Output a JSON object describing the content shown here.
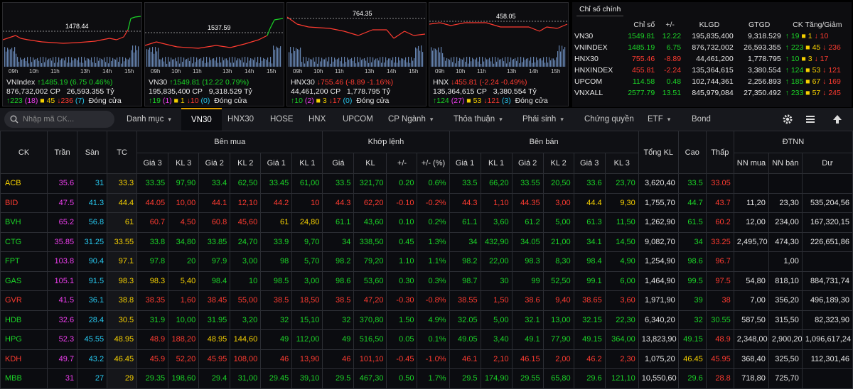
{
  "colors": {
    "up": "#1bd427",
    "down": "#ff3b30",
    "ref": "#f5d000",
    "floor": "#27c9f0",
    "ceil": "#f03ef0"
  },
  "mini_charts": [
    {
      "name": "VNIndex",
      "ref_value": "1478.44",
      "arrow": "↑",
      "change": "1485.19 (6.75 0.46%)",
      "dir": "g",
      "vol": "876,732,002",
      "vol_unit": "CP",
      "val": "26,593.355",
      "val_unit": "Tỷ",
      "up": "223",
      "ceil": "(18)",
      "ref": "45",
      "down": "236",
      "floor": "(7)",
      "status": "Đóng cửa"
    },
    {
      "name": "VN30",
      "ref_value": "1537.59",
      "arrow": "↑",
      "change": "1549.81 (12.22 0.79%)",
      "dir": "g",
      "vol": "195,835,400",
      "vol_unit": "CP",
      "val": "9,318.529",
      "val_unit": "Tỷ",
      "up": "19",
      "ceil": "(1)",
      "ref": "1",
      "down": "10",
      "floor": "(0)",
      "status": "Đóng cửa"
    },
    {
      "name": "HNX30",
      "ref_value": "764.35",
      "arrow": "↓",
      "change": "755.46 (-8.89 -1.16%)",
      "dir": "r",
      "vol": "44,461,200",
      "vol_unit": "CP",
      "val": "1,778.795",
      "val_unit": "Tỷ",
      "up": "10",
      "ceil": "(2)",
      "ref": "3",
      "down": "17",
      "floor": "(0)",
      "status": "Đóng cửa"
    },
    {
      "name": "HNX",
      "ref_value": "458.05",
      "arrow": "↓",
      "change": "455.81 (-2.24 -0.49%)",
      "dir": "r",
      "vol": "135,364,615",
      "vol_unit": "CP",
      "val": "3,380.554",
      "val_unit": "Tỷ",
      "up": "124",
      "ceil": "(27)",
      "ref": "53",
      "down": "121",
      "floor": "(3)",
      "status": "Đóng cửa"
    }
  ],
  "time_ticks": [
    "09h",
    "10h",
    "11h",
    "13h",
    "14h",
    "15h"
  ],
  "index_table": {
    "title": "Chỉ số chính",
    "headers": [
      "Chỉ số",
      "+/-",
      "KLGD",
      "GTGD",
      "CK Tăng/Giảm"
    ],
    "rows": [
      {
        "name": "VN30",
        "value": "1549.81",
        "change": "12.22",
        "klgd": "195,835,400",
        "gtgd": "9,318.529",
        "up": "19",
        "ref": "1",
        "down": "10",
        "dir": "g"
      },
      {
        "name": "VNINDEX",
        "value": "1485.19",
        "change": "6.75",
        "klgd": "876,732,002",
        "gtgd": "26,593.355",
        "up": "223",
        "ref": "45",
        "down": "236",
        "dir": "g"
      },
      {
        "name": "HNX30",
        "value": "755.46",
        "change": "-8.89",
        "klgd": "44,461,200",
        "gtgd": "1,778.795",
        "up": "10",
        "ref": "3",
        "down": "17",
        "dir": "r"
      },
      {
        "name": "HNXINDEX",
        "value": "455.81",
        "change": "-2.24",
        "klgd": "135,364,615",
        "gtgd": "3,380.554",
        "up": "124",
        "ref": "53",
        "down": "121",
        "dir": "r"
      },
      {
        "name": "UPCOM",
        "value": "114.58",
        "change": "0.48",
        "klgd": "102,744,361",
        "gtgd": "2,256.893",
        "up": "185",
        "ref": "67",
        "down": "169",
        "dir": "g"
      },
      {
        "name": "VNXALL",
        "value": "2577.79",
        "change": "13.51",
        "klgd": "845,979,084",
        "gtgd": "27,350.492",
        "up": "233",
        "ref": "57",
        "down": "245",
        "dir": "g"
      }
    ]
  },
  "search": {
    "placeholder": "Nhập mã CK..."
  },
  "tabs": [
    {
      "label": "Danh mục",
      "chev": true
    },
    {
      "label": "VN30",
      "chev": false
    },
    {
      "label": "HNX30",
      "chev": false
    },
    {
      "label": "HOSE",
      "chev": false
    },
    {
      "label": "HNX",
      "chev": false
    },
    {
      "label": "UPCOM",
      "chev": false
    },
    {
      "label": "CP Ngành",
      "chev": true
    },
    {
      "label": "Thỏa thuận",
      "chev": true
    },
    {
      "label": "Phái sinh",
      "chev": true
    },
    {
      "label": "Chứng quyền",
      "chev": false
    },
    {
      "label": "ETF",
      "chev": true
    },
    {
      "label": "Bond",
      "chev": false
    }
  ],
  "board": {
    "groups": {
      "ck": "CK",
      "tran": "Trần",
      "san": "Sàn",
      "tc": "TC",
      "buy": "Bên mua",
      "match": "Khớp lệnh",
      "sell": "Bên bán",
      "tong": "Tổng KL",
      "cao": "Cao",
      "thap": "Thấp",
      "dtnn": "ĐTNN"
    },
    "sub": [
      "Giá 3",
      "KL 3",
      "Giá 2",
      "KL 2",
      "Giá 1",
      "KL 1",
      "Giá",
      "KL",
      "+/-",
      "+/- (%)",
      "Giá 1",
      "KL 1",
      "Giá 2",
      "KL 2",
      "Giá 3",
      "KL 3",
      "NN mua",
      "NN bán",
      "Dư"
    ],
    "rows": [
      {
        "ck": "ACB",
        "d": "y",
        "tran": "35.6",
        "san": "31",
        "tc": "33.3",
        "b3": [
          "33.35",
          "97,90",
          "g"
        ],
        "b2": [
          "33.4",
          "62,50",
          "g"
        ],
        "b1": [
          "33.45",
          "61,00",
          "g"
        ],
        "m": [
          "33.5",
          "321,70",
          "0.20",
          "0.6%",
          "g"
        ],
        "s1": [
          "33.5",
          "66,20",
          "g"
        ],
        "s2": [
          "33.55",
          "20,50",
          "g"
        ],
        "s3": [
          "33.6",
          "23,70",
          "g"
        ],
        "tong": "3,620,40",
        "cao": [
          "33.5",
          "g"
        ],
        "thap": [
          "33.05",
          "r"
        ],
        "nnm": "",
        "nnb": "",
        "du": ""
      },
      {
        "ck": "BID",
        "d": "r",
        "tran": "47.5",
        "san": "41.3",
        "tc": "44.4",
        "b3": [
          "44.05",
          "10,00",
          "r"
        ],
        "b2": [
          "44.1",
          "12,10",
          "r"
        ],
        "b1": [
          "44.2",
          "10",
          "r"
        ],
        "m": [
          "44.3",
          "62,20",
          "-0.10",
          "-0.2%",
          "r"
        ],
        "s1": [
          "44.3",
          "1,10",
          "r"
        ],
        "s2": [
          "44.35",
          "3,00",
          "r"
        ],
        "s3": [
          "44.4",
          "9,30",
          "y"
        ],
        "tong": "1,755,70",
        "cao": [
          "44.7",
          "g"
        ],
        "thap": [
          "43.7",
          "r"
        ],
        "nnm": "11,20",
        "nnb": "23,30",
        "du": "535,204,56"
      },
      {
        "ck": "BVH",
        "d": "g",
        "tran": "65.2",
        "san": "56.8",
        "tc": "61",
        "b3": [
          "60.7",
          "4,50",
          "r"
        ],
        "b2": [
          "60.8",
          "45,60",
          "r"
        ],
        "b1": [
          "61",
          "24,80",
          "y"
        ],
        "m": [
          "61.1",
          "43,60",
          "0.10",
          "0.2%",
          "g"
        ],
        "s1": [
          "61.1",
          "3,60",
          "g"
        ],
        "s2": [
          "61.2",
          "5,00",
          "g"
        ],
        "s3": [
          "61.3",
          "11,50",
          "g"
        ],
        "tong": "1,262,90",
        "cao": [
          "61.5",
          "g"
        ],
        "thap": [
          "60.2",
          "r"
        ],
        "nnm": "12,00",
        "nnb": "234,00",
        "du": "167,320,15"
      },
      {
        "ck": "CTG",
        "d": "g",
        "tran": "35.85",
        "san": "31.25",
        "tc": "33.55",
        "b3": [
          "33.8",
          "34,80",
          "g"
        ],
        "b2": [
          "33.85",
          "24,70",
          "g"
        ],
        "b1": [
          "33.9",
          "9,70",
          "g"
        ],
        "m": [
          "34",
          "338,50",
          "0.45",
          "1.3%",
          "g"
        ],
        "s1": [
          "34",
          "432,90",
          "g"
        ],
        "s2": [
          "34.05",
          "21,00",
          "g"
        ],
        "s3": [
          "34.1",
          "14,50",
          "g"
        ],
        "tong": "9,082,70",
        "cao": [
          "34",
          "g"
        ],
        "thap": [
          "33.25",
          "r"
        ],
        "nnm": "2,495,70",
        "nnb": "474,30",
        "du": "226,651,86"
      },
      {
        "ck": "FPT",
        "d": "g",
        "tran": "103.8",
        "san": "90.4",
        "tc": "97.1",
        "b3": [
          "97.8",
          "20",
          "g"
        ],
        "b2": [
          "97.9",
          "3,00",
          "g"
        ],
        "b1": [
          "98",
          "5,70",
          "g"
        ],
        "m": [
          "98.2",
          "79,20",
          "1.10",
          "1.1%",
          "g"
        ],
        "s1": [
          "98.2",
          "22,00",
          "g"
        ],
        "s2": [
          "98.3",
          "8,30",
          "g"
        ],
        "s3": [
          "98.4",
          "4,90",
          "g"
        ],
        "tong": "1,254,90",
        "cao": [
          "98.6",
          "g"
        ],
        "thap": [
          "96.7",
          "r"
        ],
        "nnm": "",
        "nnb": "1,00",
        "du": ""
      },
      {
        "ck": "GAS",
        "d": "g",
        "tran": "105.1",
        "san": "91.5",
        "tc": "98.3",
        "b3": [
          "98.3",
          "5,40",
          "y"
        ],
        "b2": [
          "98.4",
          "10",
          "g"
        ],
        "b1": [
          "98.5",
          "3,00",
          "g"
        ],
        "m": [
          "98.6",
          "53,60",
          "0.30",
          "0.3%",
          "g"
        ],
        "s1": [
          "98.7",
          "30",
          "g"
        ],
        "s2": [
          "99",
          "52,50",
          "g"
        ],
        "s3": [
          "99.1",
          "6,00",
          "g"
        ],
        "tong": "1,464,90",
        "cao": [
          "99.5",
          "g"
        ],
        "thap": [
          "97.5",
          "r"
        ],
        "nnm": "54,80",
        "nnb": "818,10",
        "du": "884,731,74"
      },
      {
        "ck": "GVR",
        "d": "r",
        "tran": "41.5",
        "san": "36.1",
        "tc": "38.8",
        "b3": [
          "38.35",
          "1,60",
          "r"
        ],
        "b2": [
          "38.45",
          "55,00",
          "r"
        ],
        "b1": [
          "38.5",
          "18,50",
          "r"
        ],
        "m": [
          "38.5",
          "47,20",
          "-0.30",
          "-0.8%",
          "r"
        ],
        "s1": [
          "38.55",
          "1,50",
          "r"
        ],
        "s2": [
          "38.6",
          "9,40",
          "r"
        ],
        "s3": [
          "38.65",
          "3,60",
          "r"
        ],
        "tong": "1,971,90",
        "cao": [
          "39",
          "g"
        ],
        "thap": [
          "38",
          "r"
        ],
        "nnm": "7,00",
        "nnb": "356,20",
        "du": "496,189,30"
      },
      {
        "ck": "HDB",
        "d": "g",
        "tran": "32.6",
        "san": "28.4",
        "tc": "30.5",
        "b3": [
          "31.9",
          "10,00",
          "g"
        ],
        "b2": [
          "31.95",
          "3,20",
          "g"
        ],
        "b1": [
          "32",
          "15,10",
          "g"
        ],
        "m": [
          "32",
          "370,80",
          "1.50",
          "4.9%",
          "g"
        ],
        "s1": [
          "32.05",
          "5,00",
          "g"
        ],
        "s2": [
          "32.1",
          "13,00",
          "g"
        ],
        "s3": [
          "32.15",
          "22,30",
          "g"
        ],
        "tong": "6,340,20",
        "cao": [
          "32",
          "g"
        ],
        "thap": [
          "30.55",
          "g"
        ],
        "nnm": "587,50",
        "nnb": "315,50",
        "du": "82,323,90"
      },
      {
        "ck": "HPG",
        "d": "g",
        "tran": "52.3",
        "san": "45.55",
        "tc": "48.95",
        "b3": [
          "48.9",
          "188,20",
          "r"
        ],
        "b2": [
          "48.95",
          "144,60",
          "y"
        ],
        "b1": [
          "49",
          "112,00",
          "g"
        ],
        "m": [
          "49",
          "516,50",
          "0.05",
          "0.1%",
          "g"
        ],
        "s1": [
          "49.05",
          "3,40",
          "g"
        ],
        "s2": [
          "49.1",
          "77,90",
          "g"
        ],
        "s3": [
          "49.15",
          "364,00",
          "g"
        ],
        "tong": "13,823,90",
        "cao": [
          "49.15",
          "g"
        ],
        "thap": [
          "48.9",
          "r"
        ],
        "nnm": "2,348,00",
        "nnb": "2,900,20",
        "du": "1,096,617,24"
      },
      {
        "ck": "KDH",
        "d": "r",
        "tran": "49.7",
        "san": "43.2",
        "tc": "46.45",
        "b3": [
          "45.9",
          "52,20",
          "r"
        ],
        "b2": [
          "45.95",
          "108,00",
          "r"
        ],
        "b1": [
          "46",
          "13,90",
          "r"
        ],
        "m": [
          "46",
          "101,10",
          "-0.45",
          "-1.0%",
          "r"
        ],
        "s1": [
          "46.1",
          "2,10",
          "r"
        ],
        "s2": [
          "46.15",
          "2,00",
          "r"
        ],
        "s3": [
          "46.2",
          "2,30",
          "r"
        ],
        "tong": "1,075,20",
        "cao": [
          "46.45",
          "y"
        ],
        "thap": [
          "45.95",
          "r"
        ],
        "nnm": "368,40",
        "nnb": "325,50",
        "du": "112,301,46"
      },
      {
        "ck": "MBB",
        "d": "g",
        "tran": "31",
        "san": "27",
        "tc": "29",
        "b3": [
          "29.35",
          "198,60",
          "g"
        ],
        "b2": [
          "29.4",
          "31,00",
          "g"
        ],
        "b1": [
          "29.45",
          "39,10",
          "g"
        ],
        "m": [
          "29.5",
          "467,30",
          "0.50",
          "1.7%",
          "g"
        ],
        "s1": [
          "29.5",
          "174,90",
          "g"
        ],
        "s2": [
          "29.55",
          "65,80",
          "g"
        ],
        "s3": [
          "29.6",
          "121,10",
          "g"
        ],
        "tong": "10,550,60",
        "cao": [
          "29.6",
          "g"
        ],
        "thap": [
          "28.8",
          "r"
        ],
        "nnm": "718,80",
        "nnb": "725,70",
        "du": ""
      }
    ]
  }
}
